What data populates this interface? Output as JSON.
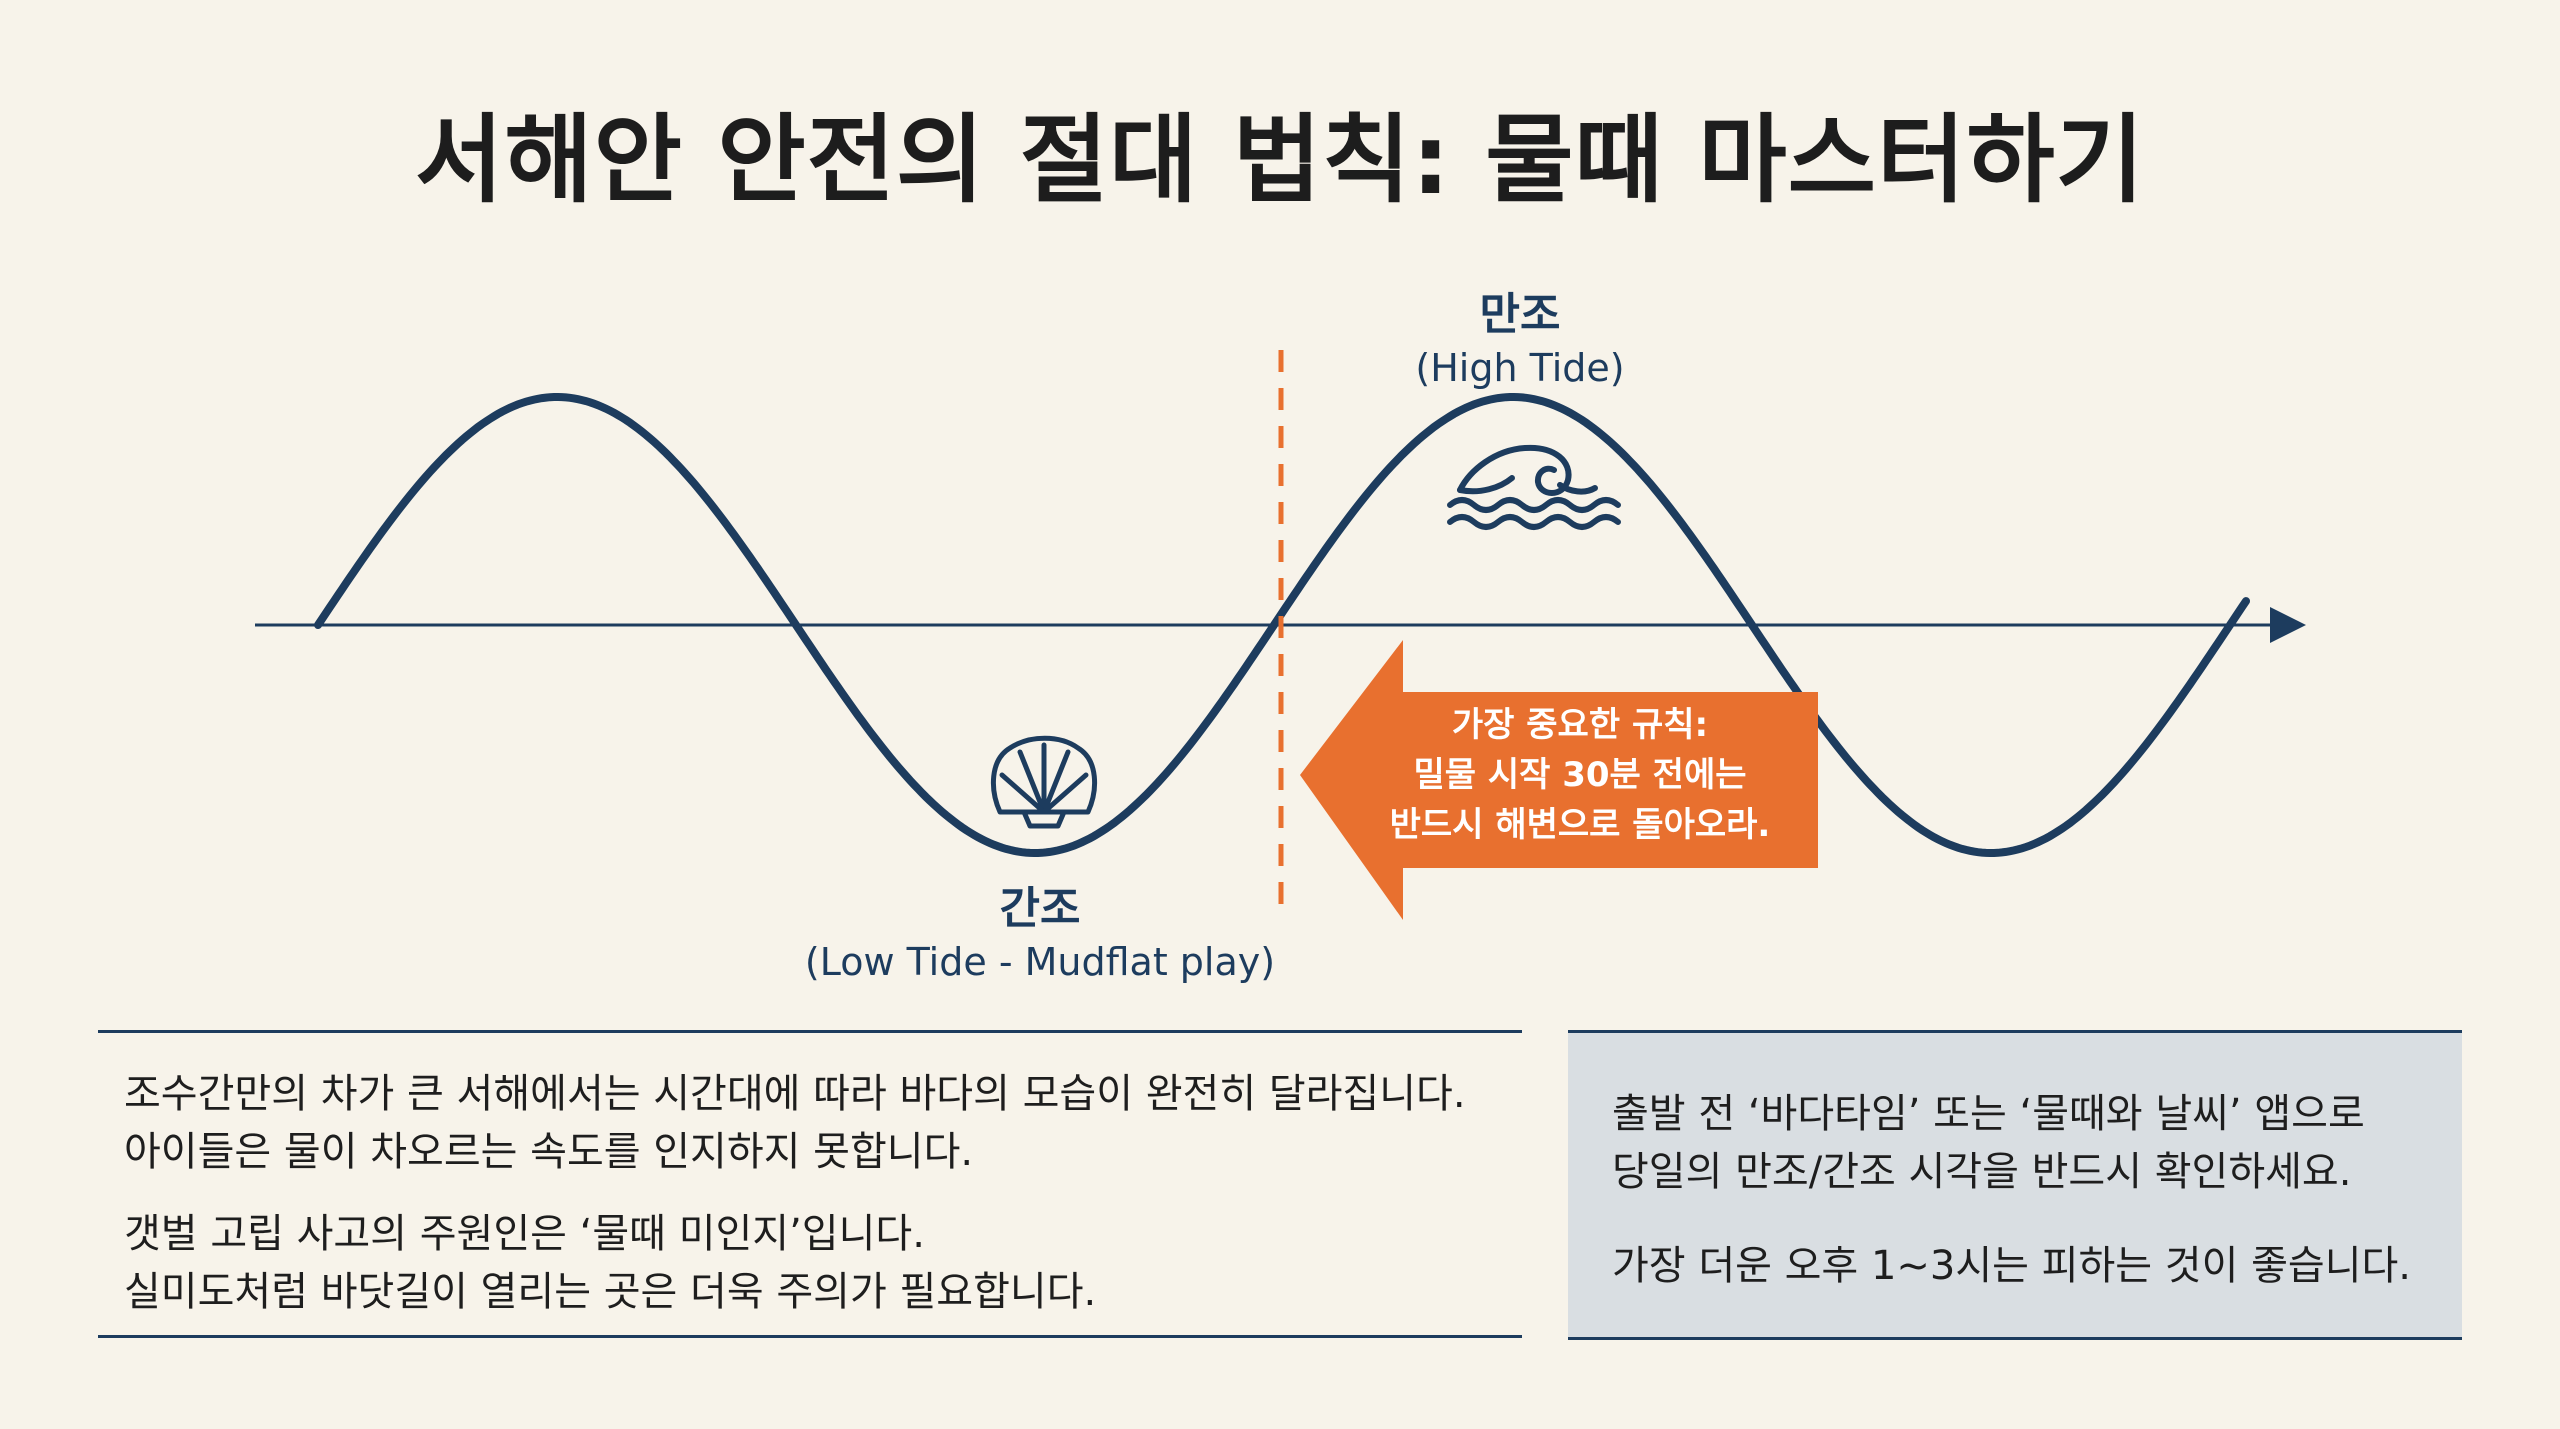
{
  "title": "서해안 안전의 절대 법칙: 물때 마스터하기",
  "high_tide": {
    "label": "만조",
    "sublabel": "(High Tide)",
    "icon": "wave-icon"
  },
  "low_tide": {
    "label": "간조",
    "sublabel": "(Low Tide - Mudflat play)",
    "icon": "shell-icon"
  },
  "callout": {
    "lines": [
      "가장 중요한 규칙:",
      "밀물 시작 30분 전에는",
      "반드시 해변으로 돌아오라."
    ],
    "color": "#e8702f"
  },
  "colors": {
    "wave": "#1d3c5e",
    "marker": "#e8702f",
    "panel_bg": "#d9dee2",
    "page_bg": "#f7f3ea"
  },
  "left_panel": {
    "p1": [
      "조수간만의 차가 큰 서해에서는 시간대에 따라 바다의 모습이 완전히 달라집니다.",
      "아이들은 물이 차오르는 속도를 인지하지 못합니다."
    ],
    "p2": [
      "갯벌 고립 사고의 주원인은 ‘물때 미인지’입니다.",
      "실미도처럼 바닷길이 열리는 곳은 더욱 주의가 필요합니다."
    ]
  },
  "right_panel": {
    "p1": [
      "출발 전 ‘바다타임’ 또는 ‘물때와 날씨’ 앱으로",
      "당일의 만조/간조 시각을 반드시 확인하세요."
    ],
    "p2": [
      "가장 더운 오후 1~3시는 피하는 것이 좋습니다."
    ]
  }
}
